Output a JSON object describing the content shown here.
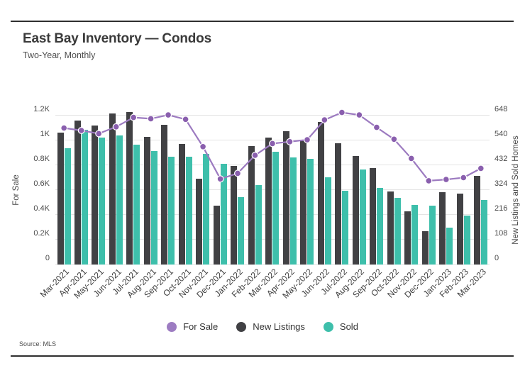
{
  "header": {
    "title": "East Bay Inventory — Condos",
    "subtitle": "Two-Year, Monthly"
  },
  "source_label": "Source: MLS",
  "colors": {
    "new_listings_bar": "#414144",
    "sold_bar": "#3ebfab",
    "for_sale_line": "#9c7ac0",
    "for_sale_dot": "#8a5fae",
    "legend_for_sale": "#9d7cc2",
    "gridline": "#e4e4e4",
    "rule": "#2f2f2f"
  },
  "chart_data": {
    "type": "bar+line combo (dual axis)",
    "title": "East Bay Inventory — Condos",
    "subtitle": "Two-Year, Monthly",
    "grid": "horizontal gridlines on",
    "legend_position": "bottom center",
    "categories": [
      "Mar-2021",
      "Apr-2021",
      "May-2021",
      "Jun-2021",
      "Jul-2021",
      "Aug-2021",
      "Sep-2021",
      "Oct-2021",
      "Nov-2021",
      "Dec-2021",
      "Jan-2022",
      "Feb-2022",
      "Mar-2022",
      "Apr-2022",
      "May-2022",
      "Jun-2022",
      "Jul-2022",
      "Aug-2022",
      "Sep-2022",
      "Oct-2022",
      "Nov-2022",
      "Dec-2022",
      "Jan-2023",
      "Feb-2023",
      "Mar-2023"
    ],
    "left_axis": {
      "title": "For Sale",
      "min": 0,
      "max": 1200,
      "ticks": [
        "1.2K",
        "1K",
        "0.8K",
        "0.6K",
        "0.4K",
        "0.2K",
        "0"
      ],
      "tick_values": [
        1200,
        1000,
        800,
        600,
        400,
        200,
        0
      ]
    },
    "right_axis": {
      "title": "New Listings and Sold Homes",
      "min": 0,
      "max": 648,
      "ticks": [
        "648",
        "540",
        "432",
        "324",
        "216",
        "108",
        "0"
      ],
      "tick_values": [
        648,
        540,
        432,
        324,
        216,
        108,
        0
      ]
    },
    "series": [
      {
        "name": "For Sale",
        "type": "line",
        "axis": "left",
        "values": [
          1100,
          1080,
          1055,
          1110,
          1185,
          1175,
          1205,
          1170,
          950,
          690,
          735,
          880,
          975,
          990,
          1005,
          1165,
          1225,
          1205,
          1105,
          1010,
          855,
          675,
          685,
          700,
          775
        ]
      },
      {
        "name": "New Listings",
        "type": "bar",
        "axis": "right",
        "values": [
          575,
          625,
          605,
          658,
          662,
          555,
          607,
          525,
          373,
          257,
          429,
          514,
          552,
          579,
          542,
          620,
          527,
          471,
          420,
          317,
          233,
          146,
          314,
          310,
          386
        ]
      },
      {
        "name": "Sold",
        "type": "bar",
        "axis": "right",
        "values": [
          505,
          585,
          553,
          561,
          520,
          494,
          468,
          468,
          480,
          439,
          293,
          347,
          491,
          465,
          461,
          381,
          322,
          415,
          334,
          291,
          260,
          255,
          161,
          213,
          280
        ]
      }
    ]
  }
}
